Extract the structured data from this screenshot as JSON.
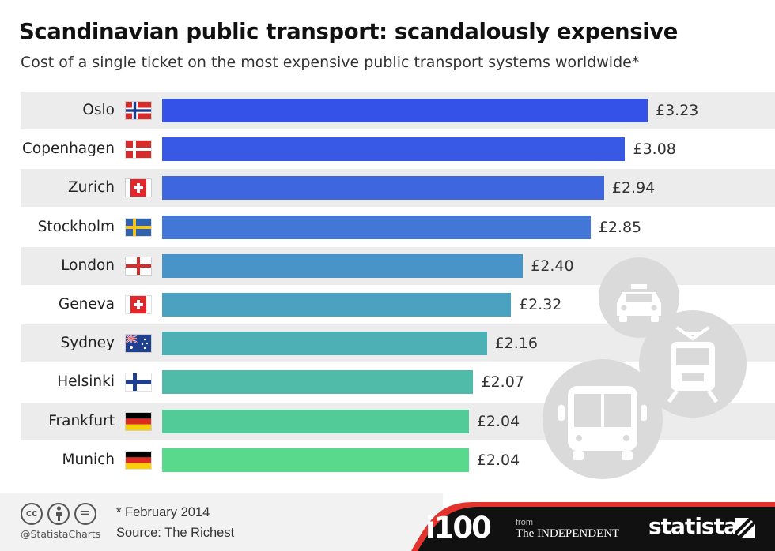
{
  "title": "Scandinavian public transport: scandalously expensive",
  "subtitle": "Cost of a single ticket on the most expensive public transport systems worldwide*",
  "footer": {
    "note": "* February 2014",
    "source": "Source: The Richest",
    "handle": "@StatistaCharts",
    "brand_i100": "i100",
    "brand_from": "from",
    "brand_independent": "The INDEPENDENT",
    "brand_statista": "statista",
    "cc_icons": [
      "cc",
      "by",
      "="
    ]
  },
  "colors": {
    "row_background": "#ececec",
    "bar_gradient": [
      "#3654e6",
      "#3e6fd9",
      "#4a8ed0",
      "#4bb3b5",
      "#55d98a"
    ],
    "icon_circle": "#dadada",
    "footer_dark": "#111111",
    "footer_red": "#e3332c"
  },
  "chart_data": {
    "type": "bar",
    "orientation": "horizontal",
    "title": "Scandinavian public transport: scandalously expensive",
    "subtitle": "Cost of a single ticket on the most expensive public transport systems worldwide*",
    "categories": [
      "Oslo",
      "Copenhagen",
      "Zurich",
      "Stockholm",
      "London",
      "Geneva",
      "Sydney",
      "Helsinki",
      "Frankfurt",
      "Munich"
    ],
    "values": [
      3.23,
      3.08,
      2.94,
      2.85,
      2.4,
      2.32,
      2.16,
      2.07,
      2.04,
      2.04
    ],
    "value_labels": [
      "£3.23",
      "£3.08",
      "£2.94",
      "£2.85",
      "£2.40",
      "£2.32",
      "£2.16",
      "£2.07",
      "£2.04",
      "£2.04"
    ],
    "flags": [
      "norway",
      "denmark",
      "switzerland",
      "sweden",
      "england",
      "switzerland",
      "australia",
      "finland",
      "germany",
      "germany"
    ],
    "bar_colors": [
      "#3451e8",
      "#3759e5",
      "#3d66df",
      "#4276d7",
      "#4894c9",
      "#4aa1c0",
      "#4cb0b4",
      "#4fbba8",
      "#53cb98",
      "#58d98b"
    ],
    "xlim": [
      0,
      3.23
    ],
    "grid": false,
    "legend": "none",
    "decorations": [
      "taxi-icon",
      "tram-icon",
      "bus-icon"
    ]
  }
}
